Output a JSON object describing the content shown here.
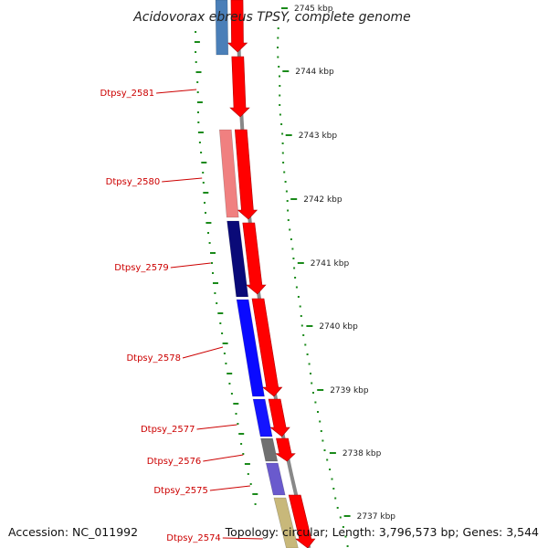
{
  "title": "Acidovorax ebreus TPSY, complete genome",
  "footer": {
    "accession": "Accession: NC_011992",
    "topology": "Topology: circular; Length: 3,796,573 bp; Genes: 3,544"
  },
  "scale_labels": [
    "2745 kbp",
    "2744 kbp",
    "2743 kbp",
    "2742 kbp",
    "2741 kbp",
    "2740 kbp",
    "2739 kbp",
    "2738 kbp",
    "2737 kbp"
  ],
  "colors": {
    "cds": "#ff0000",
    "backbone": "#888888",
    "tick": "#1a8a1a",
    "label": "#cc0000"
  },
  "inner_features": [
    {
      "color": "#4a7fb8"
    },
    {
      "color": "#f08080"
    },
    {
      "color": "#0a0a78"
    },
    {
      "color": "#0a0aff"
    },
    {
      "color": "#1414ff"
    },
    {
      "color": "#707070"
    },
    {
      "color": "#6a5acd"
    },
    {
      "color": "#c8b87a"
    }
  ],
  "genes": [
    {
      "label": "Dtpsy_2581"
    },
    {
      "label": "Dtpsy_2580"
    },
    {
      "label": "Dtpsy_2579"
    },
    {
      "label": "Dtpsy_2578"
    },
    {
      "label": "Dtpsy_2577"
    },
    {
      "label": "Dtpsy_2576"
    },
    {
      "label": "Dtpsy_2575"
    },
    {
      "label": "Dtpsy_2574"
    }
  ]
}
